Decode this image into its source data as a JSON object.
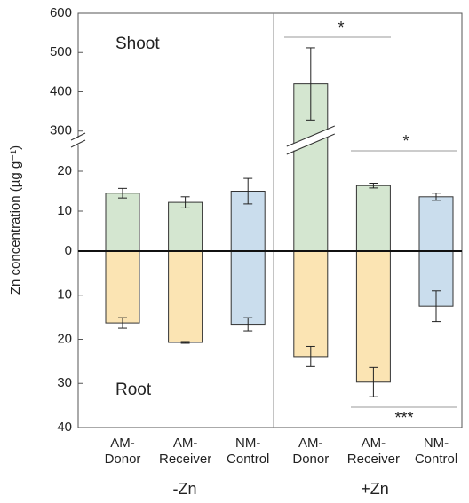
{
  "chart_data": {
    "type": "bar",
    "ylabel": "Zn concentration (µg g⁻¹)",
    "panel_labels": [
      "Shoot",
      "Root"
    ],
    "categories": [
      [
        "AM-",
        "Donor"
      ],
      [
        "AM-",
        "Receiver"
      ],
      [
        "NM-",
        "Control"
      ],
      [
        "AM-",
        "Donor"
      ],
      [
        "AM-",
        "Receiver"
      ],
      [
        "NM-",
        "Control"
      ]
    ],
    "groups": [
      "-Zn",
      "+Zn"
    ],
    "series": [
      {
        "name": "Shoot",
        "values": [
          14.5,
          12.2,
          15,
          420,
          16.4,
          13.6
        ],
        "errors": [
          1.2,
          1.4,
          3.2,
          92,
          0.6,
          0.9
        ],
        "colors": [
          "#d4e6d0",
          "#d4e6d0",
          "#cadded",
          "#d4e6d0",
          "#d4e6d0",
          "#cadded"
        ]
      },
      {
        "name": "Root",
        "values": [
          16.3,
          20.7,
          16.6,
          23.9,
          29.7,
          12.5
        ],
        "errors": [
          1.2,
          0.2,
          1.5,
          2.3,
          3.3,
          3.5
        ],
        "colors": [
          "#fbe4b3",
          "#fbe4b3",
          "#cadded",
          "#fbe4b3",
          "#fbe4b3",
          "#cadded"
        ]
      }
    ],
    "ylim_shoot_lower": [
      0,
      26
    ],
    "yticks_shoot_lower": [
      0,
      10,
      20
    ],
    "ylim_shoot_upper": [
      270,
      600
    ],
    "yticks_shoot_upper": [
      300,
      400,
      500,
      600
    ],
    "ylim_root": [
      0,
      40
    ],
    "yticks_root": [
      10,
      20,
      30,
      40
    ],
    "annotations": [
      "*",
      "*",
      "***"
    ]
  }
}
